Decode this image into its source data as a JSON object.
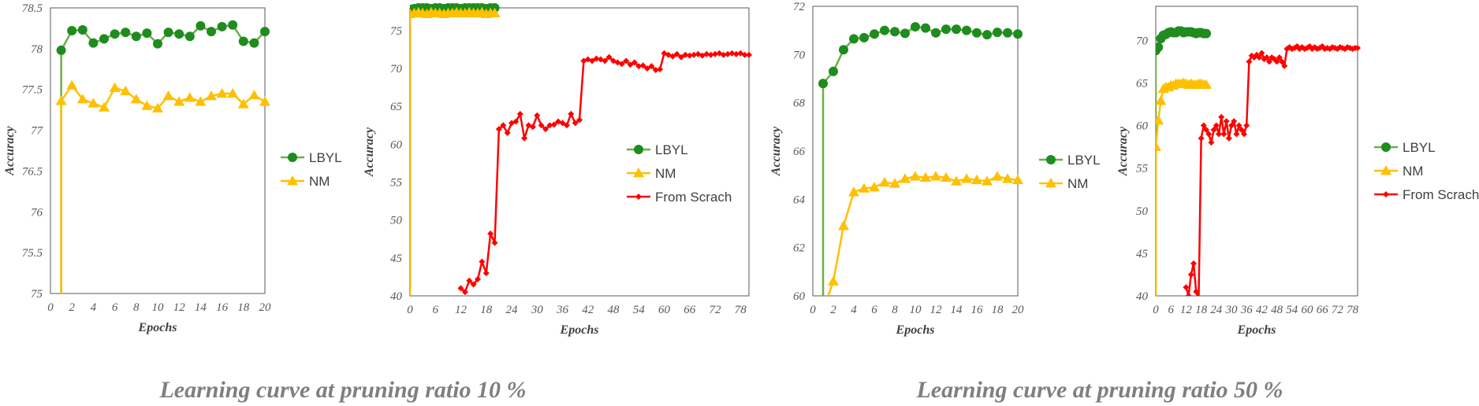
{
  "captions": {
    "left": "Learning curve at pruning ratio 10 %",
    "right": "Learning curve at pruning ratio 50 %"
  },
  "colors": {
    "lbyl": "#1e8c1e",
    "lbyl_line": "#70ad47",
    "nm": "#ffc000",
    "scratch": "#ff0000"
  },
  "chart_data": [
    {
      "type": "line",
      "xlabel": "Epochs",
      "ylabel": "Accuracy",
      "xlim": [
        0,
        20
      ],
      "ylim": [
        75,
        78.5
      ],
      "xticks": [
        "0",
        "2",
        "4",
        "6",
        "8",
        "10",
        "12",
        "14",
        "16",
        "18",
        "20"
      ],
      "yticks": [
        "75",
        "75.5",
        "76",
        "76.5",
        "77",
        "77.5",
        "78",
        "78.5"
      ],
      "legend_position": "right",
      "series": [
        {
          "name": "LBYL",
          "marker": "circle",
          "x": [
            1,
            2,
            3,
            4,
            5,
            6,
            7,
            8,
            9,
            10,
            11,
            12,
            13,
            14,
            15,
            16,
            17,
            18,
            19,
            20
          ],
          "y": [
            77.98,
            78.22,
            78.23,
            78.07,
            78.12,
            78.18,
            78.2,
            78.15,
            78.19,
            78.06,
            78.2,
            78.18,
            78.15,
            78.28,
            78.21,
            78.27,
            78.29,
            78.09,
            78.07,
            78.21
          ],
          "start": [
            1,
            75
          ]
        },
        {
          "name": "NM",
          "marker": "triangle",
          "x": [
            1,
            2,
            3,
            4,
            5,
            6,
            7,
            8,
            9,
            10,
            11,
            12,
            13,
            14,
            15,
            16,
            17,
            18,
            19,
            20
          ],
          "y": [
            77.36,
            77.55,
            77.38,
            77.33,
            77.28,
            77.52,
            77.48,
            77.38,
            77.3,
            77.27,
            77.42,
            77.35,
            77.4,
            77.35,
            77.42,
            77.45,
            77.45,
            77.32,
            77.43,
            77.35
          ],
          "start": [
            1,
            75
          ]
        }
      ]
    },
    {
      "type": "line",
      "xlabel": "Epochs",
      "ylabel": "Accuracy",
      "xlim": [
        0,
        80
      ],
      "ylim": [
        40,
        78
      ],
      "xticks": [
        "0",
        "6",
        "12",
        "18",
        "24",
        "30",
        "36",
        "42",
        "48",
        "54",
        "60",
        "66",
        "72",
        "78"
      ],
      "yticks": [
        "40",
        "45",
        "50",
        "55",
        "60",
        "65",
        "70",
        "75"
      ],
      "legend_position": "right",
      "series": [
        {
          "name": "LBYL",
          "marker": "circle",
          "x": [
            0,
            1,
            2,
            3,
            4,
            5,
            6,
            7,
            8,
            9,
            10,
            11,
            12,
            13,
            14,
            15,
            16,
            17,
            18,
            19,
            20
          ],
          "y": [
            77.8,
            77.9,
            78.0,
            78.0,
            78.0,
            77.9,
            78.0,
            78.0,
            77.9,
            78.0,
            78.0,
            78.0,
            77.9,
            78.0,
            78.0,
            78.0,
            78.0,
            78.0,
            77.9,
            78.0,
            78.0
          ],
          "start": [
            0,
            40
          ]
        },
        {
          "name": "NM",
          "marker": "triangle",
          "x": [
            0,
            1,
            2,
            3,
            4,
            5,
            6,
            7,
            8,
            9,
            10,
            11,
            12,
            13,
            14,
            15,
            16,
            17,
            18,
            19,
            20
          ],
          "y": [
            77.2,
            77.3,
            77.4,
            77.3,
            77.2,
            77.4,
            77.3,
            77.3,
            77.2,
            77.3,
            77.3,
            77.4,
            77.3,
            77.3,
            77.4,
            77.3,
            77.3,
            77.4,
            77.2,
            77.3,
            77.3
          ],
          "start": [
            0,
            40
          ]
        },
        {
          "name": "From Scrach",
          "marker": "diamond",
          "x": [
            12,
            13,
            14,
            15,
            16,
            17,
            18,
            19,
            20,
            21,
            22,
            23,
            24,
            25,
            26,
            27,
            28,
            29,
            30,
            31,
            32,
            33,
            34,
            35,
            36,
            37,
            38,
            39,
            40,
            41,
            42,
            43,
            44,
            45,
            46,
            47,
            48,
            49,
            50,
            51,
            52,
            53,
            54,
            55,
            56,
            57,
            58,
            59,
            60,
            61,
            62,
            63,
            64,
            65,
            66,
            67,
            68,
            69,
            70,
            71,
            72,
            73,
            74,
            75,
            76,
            77,
            78,
            79,
            80
          ],
          "y": [
            41.0,
            40.5,
            42.0,
            41.5,
            42.2,
            44.5,
            43.0,
            48.2,
            47.0,
            62.0,
            62.5,
            61.5,
            62.8,
            63.0,
            64.0,
            60.8,
            62.5,
            62.3,
            63.8,
            62.5,
            62.0,
            62.5,
            62.6,
            63.0,
            62.8,
            62.5,
            64.0,
            62.8,
            63.2,
            71.0,
            71.2,
            71.0,
            71.3,
            71.2,
            71.0,
            71.5,
            71.0,
            70.8,
            70.6,
            71.0,
            70.5,
            70.8,
            70.3,
            70.4,
            70.0,
            70.3,
            69.8,
            69.9,
            72.0,
            71.8,
            71.6,
            71.9,
            71.5,
            71.8,
            71.7,
            71.8,
            71.9,
            71.7,
            71.9,
            71.8,
            71.9,
            72.0,
            71.8,
            71.9,
            72.0,
            71.9,
            72.0,
            71.8,
            71.8
          ]
        }
      ]
    },
    {
      "type": "line",
      "xlabel": "Epochs",
      "ylabel": "Accuracy",
      "xlim": [
        0,
        20
      ],
      "ylim": [
        60,
        72
      ],
      "xticks": [
        "0",
        "2",
        "4",
        "6",
        "8",
        "10",
        "12",
        "14",
        "16",
        "18",
        "20"
      ],
      "yticks": [
        "60",
        "62",
        "64",
        "66",
        "68",
        "70",
        "72"
      ],
      "legend_position": "right",
      "series": [
        {
          "name": "LBYL",
          "marker": "circle",
          "x": [
            1,
            2,
            3,
            4,
            5,
            6,
            7,
            8,
            9,
            10,
            11,
            12,
            13,
            14,
            15,
            16,
            17,
            18,
            19,
            20
          ],
          "y": [
            68.8,
            69.3,
            70.2,
            70.65,
            70.7,
            70.85,
            71.0,
            70.95,
            70.88,
            71.15,
            71.1,
            70.9,
            71.05,
            71.05,
            71.0,
            70.9,
            70.82,
            70.92,
            70.9,
            70.85
          ],
          "start": [
            1,
            60
          ]
        },
        {
          "name": "NM",
          "marker": "triangle",
          "x": [
            2,
            3,
            4,
            5,
            6,
            7,
            8,
            9,
            10,
            11,
            12,
            13,
            14,
            15,
            16,
            17,
            18,
            19,
            20
          ],
          "y": [
            60.6,
            62.9,
            64.3,
            64.45,
            64.5,
            64.7,
            64.65,
            64.85,
            64.95,
            64.9,
            64.95,
            64.9,
            64.75,
            64.85,
            64.8,
            64.75,
            64.95,
            64.85,
            64.8
          ],
          "start": [
            1.5,
            60
          ]
        }
      ]
    },
    {
      "type": "line",
      "xlabel": "Epochs",
      "ylabel": "Accuracy",
      "xlim": [
        0,
        80
      ],
      "ylim": [
        40,
        74
      ],
      "xticks": [
        "0",
        "6",
        "12",
        "18",
        "24",
        "30",
        "36",
        "42",
        "48",
        "54",
        "60",
        "66",
        "72",
        "78"
      ],
      "yticks": [
        "40",
        "45",
        "50",
        "55",
        "60",
        "65",
        "70"
      ],
      "legend_position": "right",
      "series": [
        {
          "name": "LBYL",
          "marker": "circle",
          "x": [
            0,
            1,
            2,
            3,
            4,
            5,
            6,
            7,
            8,
            9,
            10,
            11,
            12,
            13,
            14,
            15,
            16,
            17,
            18,
            19,
            20
          ],
          "y": [
            68.8,
            69.2,
            70.2,
            70.6,
            70.7,
            70.9,
            71.0,
            70.9,
            70.9,
            71.1,
            71.1,
            70.9,
            71.0,
            71.0,
            71.0,
            70.9,
            70.8,
            70.9,
            70.9,
            70.8,
            70.8
          ],
          "start": [
            0,
            40
          ]
        },
        {
          "name": "NM",
          "marker": "triangle",
          "x": [
            0,
            1,
            2,
            3,
            4,
            5,
            6,
            7,
            8,
            9,
            10,
            11,
            12,
            13,
            14,
            15,
            16,
            17,
            18,
            19,
            20
          ],
          "y": [
            57.5,
            60.6,
            62.9,
            64.3,
            64.5,
            64.5,
            64.7,
            64.7,
            64.9,
            64.9,
            64.9,
            65.0,
            64.9,
            64.8,
            64.9,
            64.8,
            64.8,
            64.9,
            64.9,
            64.8,
            64.8
          ],
          "start": [
            0,
            40
          ]
        },
        {
          "name": "From Scrach",
          "marker": "diamond",
          "x": [
            12,
            13,
            14,
            15,
            16,
            17,
            18,
            19,
            20,
            21,
            22,
            23,
            24,
            25,
            26,
            27,
            28,
            29,
            30,
            31,
            32,
            33,
            34,
            35,
            36,
            37,
            38,
            39,
            40,
            41,
            42,
            43,
            44,
            45,
            46,
            47,
            48,
            49,
            50,
            51,
            52,
            53,
            54,
            55,
            56,
            57,
            58,
            59,
            60,
            61,
            62,
            63,
            64,
            65,
            66,
            67,
            68,
            69,
            70,
            71,
            72,
            73,
            74,
            75,
            76,
            77,
            78,
            79,
            80
          ],
          "y": [
            41.0,
            40.0,
            42.5,
            43.8,
            40.5,
            39.5,
            58.5,
            60.0,
            59.5,
            59.0,
            58.0,
            59.5,
            60.0,
            59.0,
            61.0,
            59.0,
            60.5,
            58.5,
            60.0,
            60.5,
            59.0,
            60.0,
            59.5,
            59.0,
            60.0,
            67.5,
            68.2,
            68.0,
            68.3,
            68.0,
            68.5,
            67.8,
            68.0,
            67.5,
            68.0,
            67.8,
            67.5,
            68.0,
            67.5,
            67.0,
            69.0,
            69.2,
            69.0,
            69.1,
            69.3,
            69.0,
            69.2,
            69.0,
            69.1,
            69.3,
            69.0,
            69.2,
            69.0,
            69.1,
            69.3,
            69.0,
            69.1,
            69.0,
            69.2,
            69.1,
            69.0,
            69.2,
            69.1,
            69.0,
            69.2,
            69.1,
            69.0,
            69.1,
            69.1
          ]
        }
      ]
    }
  ]
}
